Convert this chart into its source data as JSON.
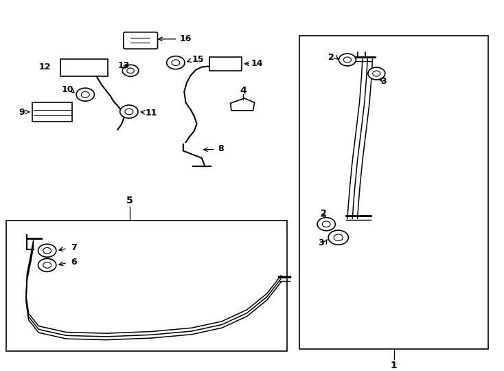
{
  "bg_color": "#ffffff",
  "line_color": "#000000",
  "fig_width": 7.34,
  "fig_height": 5.4,
  "dpi": 100
}
